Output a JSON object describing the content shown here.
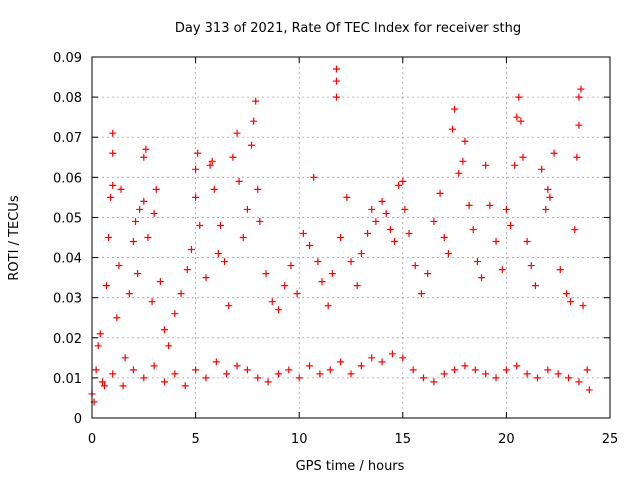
{
  "chart_data": {
    "type": "scatter",
    "title": "Day 313 of 2021, Rate Of TEC Index for receiver sthg",
    "xlabel": "GPS time / hours",
    "ylabel": "ROTI / TECUs",
    "xlim": [
      0,
      25
    ],
    "ylim": [
      0,
      0.09
    ],
    "x_ticks": [
      0,
      5,
      10,
      15,
      20,
      25
    ],
    "x_tick_labels": [
      "0",
      "5",
      "10",
      "15",
      "20",
      "25"
    ],
    "y_ticks": [
      0,
      0.01,
      0.02,
      0.03,
      0.04,
      0.05,
      0.06,
      0.07,
      0.08,
      0.09
    ],
    "y_tick_labels": [
      "0",
      "0.01",
      "0.02",
      "0.03",
      "0.04",
      "0.05",
      "0.06",
      "0.07",
      "0.08",
      "0.09"
    ],
    "grid": true,
    "marker": "plus",
    "marker_color": "#ff0000",
    "series": [
      {
        "name": "ROTI",
        "points": [
          [
            0.1,
            0.004
          ],
          [
            0.2,
            0.012
          ],
          [
            0.3,
            0.018
          ],
          [
            0.4,
            0.021
          ],
          [
            0.6,
            0.008
          ],
          [
            0.7,
            0.033
          ],
          [
            0.8,
            0.045
          ],
          [
            0.9,
            0.055
          ],
          [
            1.0,
            0.058
          ],
          [
            1.0,
            0.066
          ],
          [
            1.0,
            0.071
          ],
          [
            1.2,
            0.025
          ],
          [
            1.3,
            0.038
          ],
          [
            1.4,
            0.057
          ],
          [
            1.6,
            0.015
          ],
          [
            1.8,
            0.031
          ],
          [
            2.0,
            0.044
          ],
          [
            2.1,
            0.049
          ],
          [
            2.2,
            0.036
          ],
          [
            2.3,
            0.052
          ],
          [
            2.5,
            0.054
          ],
          [
            2.5,
            0.065
          ],
          [
            2.6,
            0.067
          ],
          [
            2.7,
            0.045
          ],
          [
            2.9,
            0.029
          ],
          [
            3.0,
            0.051
          ],
          [
            3.1,
            0.057
          ],
          [
            3.3,
            0.034
          ],
          [
            3.5,
            0.022
          ],
          [
            3.7,
            0.018
          ],
          [
            4.0,
            0.026
          ],
          [
            4.3,
            0.031
          ],
          [
            4.6,
            0.037
          ],
          [
            4.8,
            0.042
          ],
          [
            5.0,
            0.055
          ],
          [
            5.0,
            0.062
          ],
          [
            5.1,
            0.066
          ],
          [
            5.2,
            0.048
          ],
          [
            5.5,
            0.035
          ],
          [
            5.7,
            0.063
          ],
          [
            5.8,
            0.064
          ],
          [
            5.9,
            0.057
          ],
          [
            6.1,
            0.041
          ],
          [
            6.2,
            0.048
          ],
          [
            6.4,
            0.039
          ],
          [
            6.6,
            0.028
          ],
          [
            6.8,
            0.065
          ],
          [
            7.0,
            0.071
          ],
          [
            7.1,
            0.059
          ],
          [
            7.3,
            0.045
          ],
          [
            7.5,
            0.052
          ],
          [
            7.7,
            0.068
          ],
          [
            7.8,
            0.074
          ],
          [
            7.9,
            0.079
          ],
          [
            8.0,
            0.057
          ],
          [
            8.1,
            0.049
          ],
          [
            8.4,
            0.036
          ],
          [
            8.7,
            0.029
          ],
          [
            9.0,
            0.027
          ],
          [
            9.3,
            0.033
          ],
          [
            9.6,
            0.038
          ],
          [
            9.9,
            0.031
          ],
          [
            10.2,
            0.046
          ],
          [
            10.5,
            0.043
          ],
          [
            10.7,
            0.06
          ],
          [
            10.9,
            0.039
          ],
          [
            11.1,
            0.034
          ],
          [
            11.4,
            0.028
          ],
          [
            11.6,
            0.036
          ],
          [
            11.8,
            0.087
          ],
          [
            11.8,
            0.084
          ],
          [
            11.8,
            0.08
          ],
          [
            12.0,
            0.045
          ],
          [
            12.3,
            0.055
          ],
          [
            12.5,
            0.039
          ],
          [
            12.8,
            0.033
          ],
          [
            13.0,
            0.041
          ],
          [
            13.3,
            0.046
          ],
          [
            13.5,
            0.052
          ],
          [
            13.7,
            0.049
          ],
          [
            14.0,
            0.054
          ],
          [
            14.2,
            0.051
          ],
          [
            14.4,
            0.047
          ],
          [
            14.6,
            0.044
          ],
          [
            14.8,
            0.058
          ],
          [
            15.0,
            0.059
          ],
          [
            15.1,
            0.052
          ],
          [
            15.3,
            0.046
          ],
          [
            15.6,
            0.038
          ],
          [
            15.9,
            0.031
          ],
          [
            16.2,
            0.036
          ],
          [
            16.5,
            0.049
          ],
          [
            16.8,
            0.056
          ],
          [
            17.0,
            0.045
          ],
          [
            17.2,
            0.041
          ],
          [
            17.4,
            0.072
          ],
          [
            17.5,
            0.077
          ],
          [
            17.7,
            0.061
          ],
          [
            17.9,
            0.064
          ],
          [
            18.0,
            0.069
          ],
          [
            18.2,
            0.053
          ],
          [
            18.4,
            0.047
          ],
          [
            18.6,
            0.039
          ],
          [
            18.8,
            0.035
          ],
          [
            19.0,
            0.063
          ],
          [
            19.2,
            0.053
          ],
          [
            19.5,
            0.044
          ],
          [
            19.8,
            0.037
          ],
          [
            20.0,
            0.052
          ],
          [
            20.2,
            0.048
          ],
          [
            20.4,
            0.063
          ],
          [
            20.5,
            0.075
          ],
          [
            20.6,
            0.08
          ],
          [
            20.7,
            0.074
          ],
          [
            20.8,
            0.065
          ],
          [
            21.0,
            0.044
          ],
          [
            21.2,
            0.038
          ],
          [
            21.4,
            0.033
          ],
          [
            21.7,
            0.062
          ],
          [
            21.9,
            0.052
          ],
          [
            22.0,
            0.057
          ],
          [
            22.1,
            0.055
          ],
          [
            22.3,
            0.066
          ],
          [
            22.6,
            0.037
          ],
          [
            22.9,
            0.031
          ],
          [
            23.1,
            0.029
          ],
          [
            23.3,
            0.047
          ],
          [
            23.4,
            0.065
          ],
          [
            23.5,
            0.073
          ],
          [
            23.5,
            0.08
          ],
          [
            23.6,
            0.082
          ],
          [
            23.7,
            0.028
          ],
          [
            23.9,
            0.012
          ]
        ],
        "baseline_points": [
          [
            0.0,
            0.006
          ],
          [
            0.5,
            0.009
          ],
          [
            1.0,
            0.011
          ],
          [
            1.5,
            0.008
          ],
          [
            2.0,
            0.012
          ],
          [
            2.5,
            0.01
          ],
          [
            3.0,
            0.013
          ],
          [
            3.5,
            0.009
          ],
          [
            4.0,
            0.011
          ],
          [
            4.5,
            0.008
          ],
          [
            5.0,
            0.012
          ],
          [
            5.5,
            0.01
          ],
          [
            6.0,
            0.014
          ],
          [
            6.5,
            0.011
          ],
          [
            7.0,
            0.013
          ],
          [
            7.5,
            0.012
          ],
          [
            8.0,
            0.01
          ],
          [
            8.5,
            0.009
          ],
          [
            9.0,
            0.011
          ],
          [
            9.5,
            0.012
          ],
          [
            10.0,
            0.01
          ],
          [
            10.5,
            0.013
          ],
          [
            11.0,
            0.011
          ],
          [
            11.5,
            0.012
          ],
          [
            12.0,
            0.014
          ],
          [
            12.5,
            0.011
          ],
          [
            13.0,
            0.013
          ],
          [
            13.5,
            0.015
          ],
          [
            14.0,
            0.014
          ],
          [
            14.5,
            0.016
          ],
          [
            15.0,
            0.015
          ],
          [
            15.5,
            0.012
          ],
          [
            16.0,
            0.01
          ],
          [
            16.5,
            0.009
          ],
          [
            17.0,
            0.011
          ],
          [
            17.5,
            0.012
          ],
          [
            18.0,
            0.013
          ],
          [
            18.5,
            0.012
          ],
          [
            19.0,
            0.011
          ],
          [
            19.5,
            0.01
          ],
          [
            20.0,
            0.012
          ],
          [
            20.5,
            0.013
          ],
          [
            21.0,
            0.011
          ],
          [
            21.5,
            0.01
          ],
          [
            22.0,
            0.012
          ],
          [
            22.5,
            0.011
          ],
          [
            23.0,
            0.01
          ],
          [
            23.5,
            0.009
          ],
          [
            24.0,
            0.007
          ]
        ]
      }
    ]
  }
}
